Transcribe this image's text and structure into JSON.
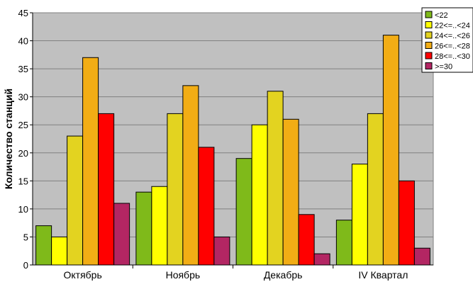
{
  "chart_data": {
    "type": "bar",
    "title": "",
    "xlabel": "",
    "ylabel": "Количество станций",
    "categories": [
      "Октябрь",
      "Ноябрь",
      "Декабрь",
      "IV Квартал"
    ],
    "series": [
      {
        "name": "<22",
        "color": "#7fba1a",
        "values": [
          7,
          13,
          19,
          8
        ]
      },
      {
        "name": "22<=..<24",
        "color": "#ffff00",
        "values": [
          5,
          14,
          25,
          18
        ]
      },
      {
        "name": "24<=..<26",
        "color": "#e3d320",
        "values": [
          23,
          27,
          31,
          27
        ]
      },
      {
        "name": "26<=..<28",
        "color": "#f2ad15",
        "values": [
          37,
          32,
          26,
          41
        ]
      },
      {
        "name": "28<=..<30",
        "color": "#ff0000",
        "values": [
          27,
          21,
          9,
          15
        ]
      },
      {
        "name": ">=30",
        "color": "#b32663",
        "values": [
          11,
          5,
          2,
          3
        ]
      }
    ],
    "ylim": [
      0,
      45
    ],
    "yticks": [
      0,
      5,
      10,
      15,
      20,
      25,
      30,
      35,
      40,
      45
    ],
    "grid": true,
    "legend_position": "top-right",
    "plot_background": "#c0c0c0"
  }
}
